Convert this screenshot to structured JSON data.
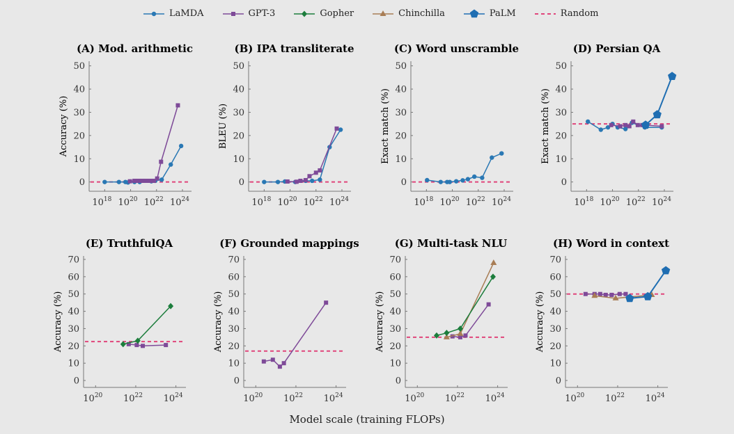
{
  "legend": [
    {
      "name": "LaMDA",
      "color": "#2a78b4",
      "marker": "circle"
    },
    {
      "name": "GPT-3",
      "color": "#7e4a98",
      "marker": "square"
    },
    {
      "name": "Gopher",
      "color": "#1c7d3c",
      "marker": "diamond"
    },
    {
      "name": "Chinchilla",
      "color": "#a87d55",
      "marker": "triangle"
    },
    {
      "name": "PaLM",
      "color": "#1f6eb2",
      "marker": "pentagon"
    },
    {
      "name": "Random",
      "color": "#e0457b",
      "marker": "dashed"
    }
  ],
  "xlabel": "Model scale (training FLOPs)",
  "chart_data": [
    {
      "type": "line",
      "title": "(A) Mod. arithmetic",
      "ylabel": "Accuracy (%)",
      "xscale": "log10",
      "xticks": [
        18,
        20,
        22,
        24
      ],
      "yticks": [
        0,
        10,
        20,
        30,
        40,
        50
      ],
      "xlim": [
        16.8,
        24.7
      ],
      "ylim": [
        -4,
        52
      ],
      "random": 0,
      "series": [
        {
          "name": "LaMDA",
          "x": [
            18.0,
            19.1,
            19.6,
            19.8,
            20.3,
            20.7,
            21.6,
            21.9,
            22.4,
            23.1,
            23.9
          ],
          "y": [
            0,
            0,
            0,
            -0.2,
            0,
            0,
            0.3,
            0.5,
            1,
            7.5,
            15.5
          ]
        },
        {
          "name": "GPT-3",
          "x": [
            19.95,
            20.3,
            20.6,
            20.9,
            21.2,
            21.5,
            21.8,
            22.05,
            22.35,
            23.65
          ],
          "y": [
            0.3,
            0.5,
            0.5,
            0.5,
            0.5,
            0.5,
            0.5,
            1.5,
            8.7,
            33
          ]
        }
      ]
    },
    {
      "type": "line",
      "title": "(B) IPA transliterate",
      "ylabel": "BLEU (%)",
      "xscale": "log10",
      "xticks": [
        18,
        20,
        22,
        24
      ],
      "yticks": [
        0,
        10,
        20,
        30,
        40,
        50
      ],
      "xlim": [
        16.8,
        24.7
      ],
      "ylim": [
        -4,
        52
      ],
      "random": 0,
      "series": [
        {
          "name": "LaMDA",
          "x": [
            18.0,
            19.06,
            19.6,
            20.4,
            21.2,
            21.7,
            22.3,
            23.05,
            23.9
          ],
          "y": [
            0,
            0,
            0.2,
            0,
            0.5,
            0.5,
            1,
            15,
            22.5
          ]
        },
        {
          "name": "GPT-3",
          "x": [
            19.8,
            20.5,
            20.8,
            21.2,
            21.5,
            22.0,
            22.3,
            23.6
          ],
          "y": [
            0.2,
            0.1,
            0.5,
            0.8,
            2.5,
            4,
            5,
            23
          ]
        }
      ]
    },
    {
      "type": "line",
      "title": "(C) Word unscramble",
      "ylabel": "Exact match (%)",
      "xscale": "log10",
      "xticks": [
        18,
        20,
        22,
        24
      ],
      "yticks": [
        0,
        10,
        20,
        30,
        40,
        50
      ],
      "xlim": [
        16.8,
        24.7
      ],
      "ylim": [
        -4,
        52
      ],
      "random": 0,
      "series": [
        {
          "name": "LaMDA",
          "x": [
            18.05,
            19.1,
            19.6,
            19.8,
            20.3,
            20.8,
            21.2,
            21.7,
            22.3,
            23.05,
            23.8
          ],
          "y": [
            0.8,
            0,
            0,
            0,
            0.3,
            0.7,
            1.2,
            2.3,
            1.8,
            10.5,
            12.3
          ]
        }
      ]
    },
    {
      "type": "line",
      "title": "(D) Persian QA",
      "ylabel": "Exact match (%)",
      "xscale": "log10",
      "xticks": [
        18,
        20,
        22,
        24
      ],
      "yticks": [
        0,
        10,
        20,
        30,
        40,
        50
      ],
      "xlim": [
        16.8,
        24.7
      ],
      "ylim": [
        -4,
        52
      ],
      "random": 25,
      "series": [
        {
          "name": "LaMDA",
          "x": [
            18.1,
            19.1,
            19.65,
            20.0,
            20.4,
            21.0,
            21.5,
            22.5,
            23.8
          ],
          "y": [
            26,
            22.5,
            23.5,
            25,
            23.5,
            22.8,
            25.5,
            23.5,
            23.5
          ]
        },
        {
          "name": "GPT-3",
          "x": [
            19.9,
            20.6,
            21.0,
            21.3,
            21.6,
            21.95,
            22.3,
            23.8
          ],
          "y": [
            24.5,
            24,
            24.5,
            24,
            26,
            24.5,
            24.5,
            24
          ]
        },
        {
          "name": "PaLM",
          "x": [
            22.55,
            23.45,
            24.6
          ],
          "y": [
            24.5,
            29,
            45.5
          ]
        }
      ]
    },
    {
      "type": "line",
      "title": "(E) TruthfulQA",
      "ylabel": "Accuracy (%)",
      "xscale": "log10",
      "xticks": [
        20,
        22,
        24
      ],
      "yticks": [
        0,
        10,
        20,
        30,
        40,
        50,
        60,
        70
      ],
      "xlim": [
        19.4,
        24.5
      ],
      "ylim": [
        -4,
        72
      ],
      "random": 22.5,
      "series": [
        {
          "name": "GPT-3",
          "x": [
            21.65,
            22.05,
            22.35,
            23.5
          ],
          "y": [
            21,
            20.5,
            20,
            20.5
          ]
        },
        {
          "name": "Gopher",
          "x": [
            21.37,
            22.1,
            23.74
          ],
          "y": [
            21,
            23,
            43
          ]
        }
      ]
    },
    {
      "type": "line",
      "title": "(F) Grounded mappings",
      "ylabel": "Accuracy (%)",
      "xscale": "log10",
      "xticks": [
        20,
        22,
        24
      ],
      "yticks": [
        0,
        10,
        20,
        30,
        40,
        50,
        60,
        70
      ],
      "xlim": [
        19.4,
        24.5
      ],
      "ylim": [
        -4,
        72
      ],
      "random": 17,
      "series": [
        {
          "name": "GPT-3",
          "x": [
            20.4,
            20.85,
            21.2,
            21.4,
            23.5
          ],
          "y": [
            11,
            12,
            8,
            10,
            45
          ]
        }
      ]
    },
    {
      "type": "line",
      "title": "(G) Multi-task NLU",
      "ylabel": "Accuracy (%)",
      "xscale": "log10",
      "xticks": [
        20,
        22,
        24
      ],
      "yticks": [
        0,
        10,
        20,
        30,
        40,
        50,
        60,
        70
      ],
      "xlim": [
        19.4,
        24.5
      ],
      "ylim": [
        -4,
        72
      ],
      "random": 25,
      "series": [
        {
          "name": "GPT-3",
          "x": [
            21.75,
            22.14,
            22.4,
            23.55
          ],
          "y": [
            25.5,
            25,
            26,
            44
          ]
        },
        {
          "name": "Chinchilla",
          "x": [
            21.46,
            22.14,
            23.8
          ],
          "y": [
            25,
            27,
            68
          ]
        },
        {
          "name": "Gopher",
          "x": [
            20.96,
            21.46,
            22.14,
            23.77
          ],
          "y": [
            26,
            27.5,
            30,
            60
          ]
        }
      ]
    },
    {
      "type": "line",
      "title": "(H) Word in context",
      "ylabel": "Accuracy (%)",
      "xscale": "log10",
      "xticks": [
        20,
        22,
        24
      ],
      "yticks": [
        0,
        10,
        20,
        30,
        40,
        50,
        60,
        70
      ],
      "xlim": [
        19.4,
        24.5
      ],
      "ylim": [
        -4,
        72
      ],
      "random": 50,
      "series": [
        {
          "name": "GPT-3",
          "x": [
            20.4,
            20.85,
            21.13,
            21.4,
            21.7,
            22.1,
            22.4
          ],
          "y": [
            50,
            50,
            50,
            49.5,
            49.5,
            50,
            50
          ]
        },
        {
          "name": "Chinchilla",
          "x": [
            20.85,
            21.9,
            23.7
          ],
          "y": [
            49,
            47.5,
            49.5
          ]
        },
        {
          "name": "PaLM",
          "x": [
            22.6,
            23.5,
            24.4
          ],
          "y": [
            47.5,
            48.5,
            63.5
          ]
        }
      ]
    }
  ]
}
